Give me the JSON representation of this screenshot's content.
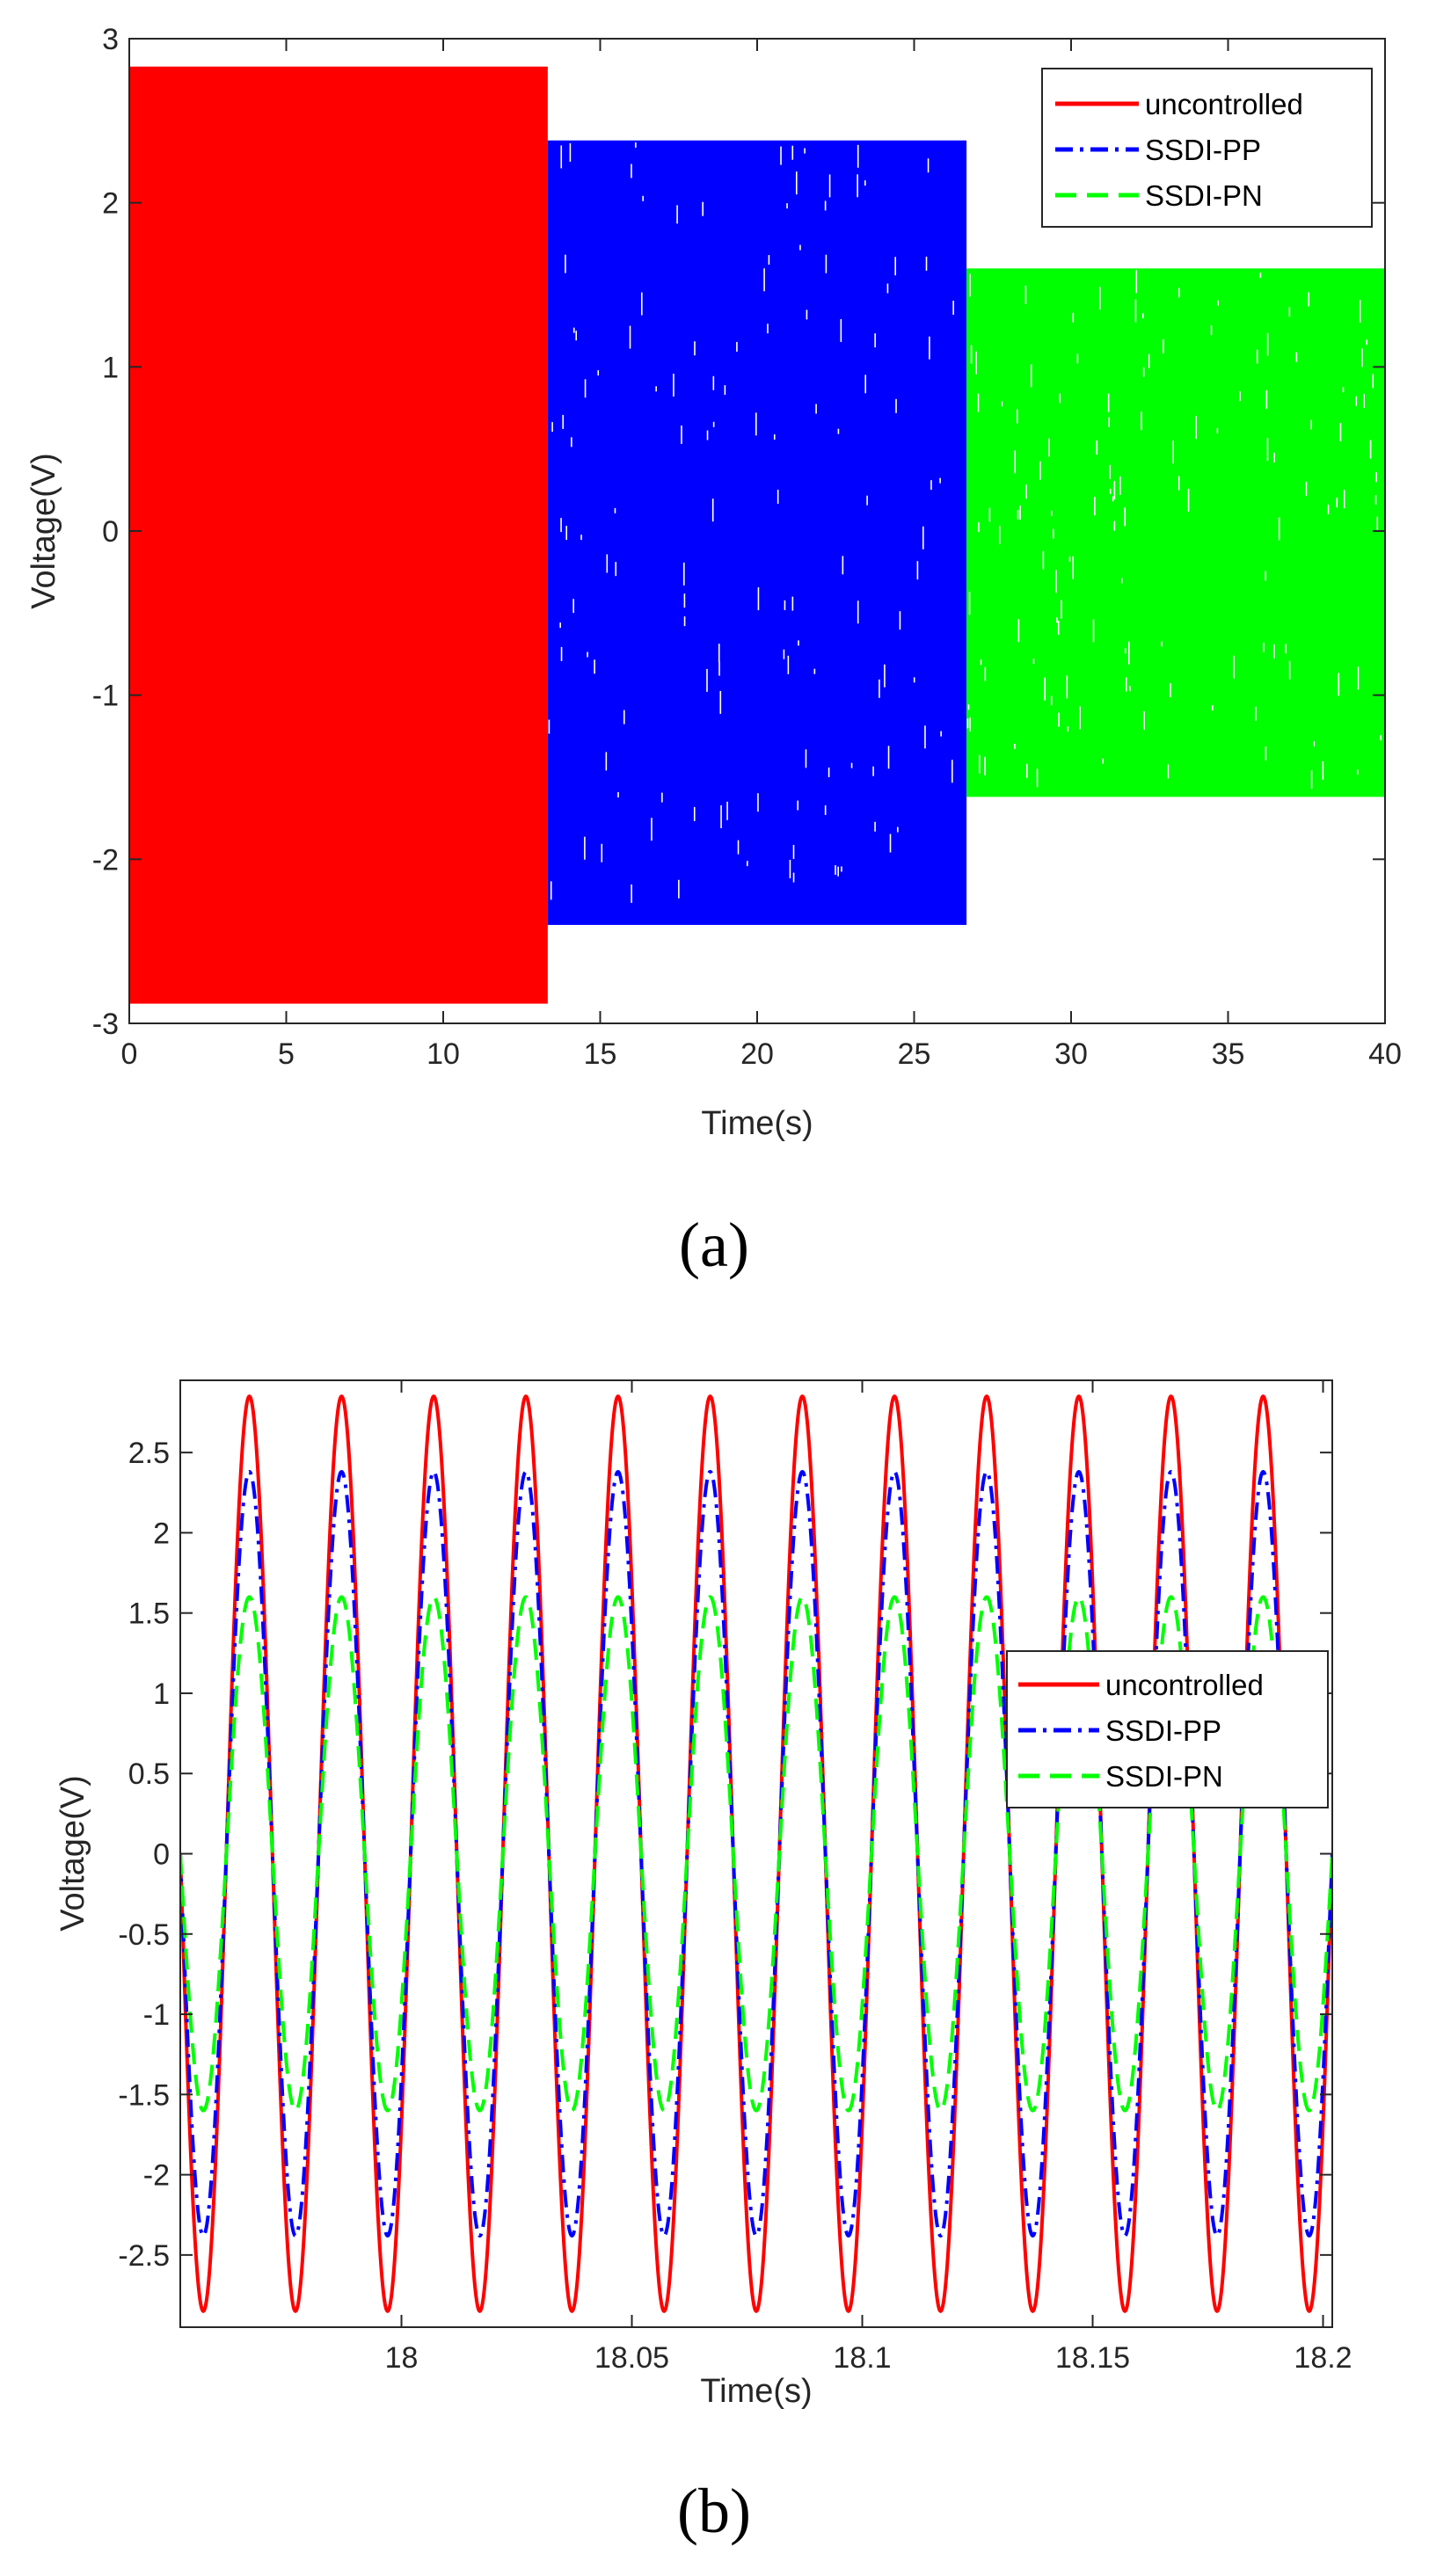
{
  "chart_data": [
    {
      "type": "line",
      "panel_label": "a",
      "xlabel": "Time(s)",
      "ylabel": "Voltage(V)",
      "xlim": [
        0,
        40
      ],
      "ylim": [
        -3,
        3
      ],
      "xticks": [
        0,
        5,
        10,
        15,
        20,
        25,
        30,
        35,
        40
      ],
      "yticks": [
        -3,
        -2,
        -1,
        0,
        1,
        2,
        3
      ],
      "legend_position": "top-right",
      "series": [
        {
          "name": "uncontrolled",
          "color": "#ff0000",
          "style": "solid",
          "x_range": [
            0,
            13.33
          ],
          "amplitude_max": 2.83,
          "amplitude_min": -2.88
        },
        {
          "name": "SSDI-PP",
          "color": "#0000ff",
          "style": "dash-dot",
          "x_range": [
            13.33,
            26.67
          ],
          "amplitude_max": 2.38,
          "amplitude_min": -2.4
        },
        {
          "name": "SSDI-PN",
          "color": "#00ff00",
          "style": "dashed",
          "x_range": [
            26.67,
            40
          ],
          "amplitude_max": 1.6,
          "amplitude_min": -1.62
        }
      ]
    },
    {
      "type": "line",
      "panel_label": "b",
      "xlabel": "Time(s)",
      "ylabel": "Voltage(V)",
      "xlim": [
        17.952,
        18.202
      ],
      "ylim": [
        -2.95,
        2.95
      ],
      "xticks": [
        18,
        18.05,
        18.1,
        18.15,
        18.2
      ],
      "xtick_labels": [
        "18",
        "18.05",
        "18.1",
        "18.15",
        "18.2"
      ],
      "yticks": [
        -2.5,
        -2,
        -1.5,
        -1,
        -0.5,
        0,
        0.5,
        1,
        1.5,
        2,
        2.5
      ],
      "legend_position": "center-right",
      "frequency_hz": 50,
      "series": [
        {
          "name": "uncontrolled",
          "color": "#ff0000",
          "style": "solid",
          "amplitude": 2.85
        },
        {
          "name": "SSDI-PP",
          "color": "#0000ff",
          "style": "dash-dot",
          "amplitude": 2.38
        },
        {
          "name": "SSDI-PN",
          "color": "#00ff00",
          "style": "dashed",
          "amplitude": 1.6
        }
      ]
    }
  ],
  "captions": {
    "a": "(a)",
    "b": "(b)"
  }
}
